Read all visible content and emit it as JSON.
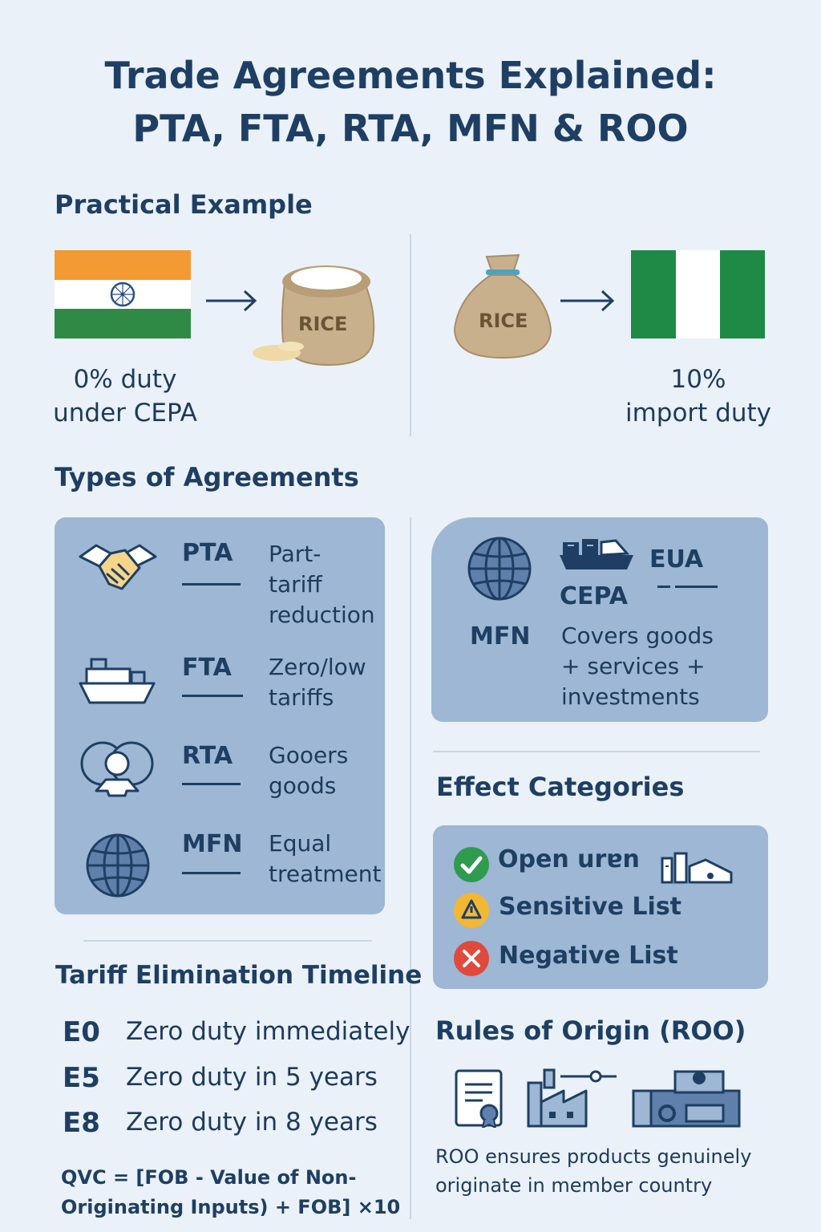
{
  "header": {
    "title_line1": "Trade Agreements Explained:",
    "title_line2": "PTA, FTA, RTA, MFN & ROO"
  },
  "practical": {
    "heading": "Practical Example",
    "left": {
      "bag_label": "RICE",
      "caption_line1": "0% duty",
      "caption_line2": "under CEPA"
    },
    "right": {
      "bag_label": "RICE",
      "caption_line1": "10%",
      "caption_line2": "import duty"
    }
  },
  "types": {
    "heading": "Types of Agreements",
    "items": [
      {
        "abbr": "PTA",
        "desc": [
          "Part-",
          "tariff",
          "reduction"
        ],
        "icon": "handshake-icon"
      },
      {
        "abbr": "FTA",
        "desc": [
          "Zero/low",
          "tariffs"
        ],
        "icon": "cargo-ship-icon"
      },
      {
        "abbr": "RTA",
        "desc": [
          "Gooers",
          "goods"
        ],
        "icon": "region-group-icon"
      },
      {
        "abbr": "MFN",
        "desc": [
          "Equal",
          "treatment"
        ],
        "icon": "globe-icon"
      }
    ],
    "cepa_box": {
      "eua": "EUA",
      "cepa": "CEPA",
      "mfn": "MFN",
      "desc": [
        "Covers goods",
        "+ services +",
        "investments"
      ]
    }
  },
  "effects": {
    "heading": "Effect Categories",
    "items": [
      {
        "label": "Open urɐn",
        "status": "check",
        "color": "#2e9b4f"
      },
      {
        "label": "Sensitive List",
        "status": "warning",
        "color": "#f2b733"
      },
      {
        "label": "Negative List",
        "status": "cross",
        "color": "#e04a3c"
      }
    ]
  },
  "timeline": {
    "heading": "Tariff Elimination Timeline",
    "items": [
      {
        "code": "E0",
        "text": "Zero duty immediately"
      },
      {
        "code": "E5",
        "text": "Zero duty in 5 years"
      },
      {
        "code": "E8",
        "text": "Zero duty in 8 years"
      }
    ],
    "formula_line1": "QVC = [FOB - Value of Non-",
    "formula_line2": "Originating Inputs) + FOB] ×10"
  },
  "roo": {
    "heading": "Rules of Origin (ROO)",
    "note_line1": "ROO ensures products genuinely",
    "note_line2": "originate in member country"
  }
}
